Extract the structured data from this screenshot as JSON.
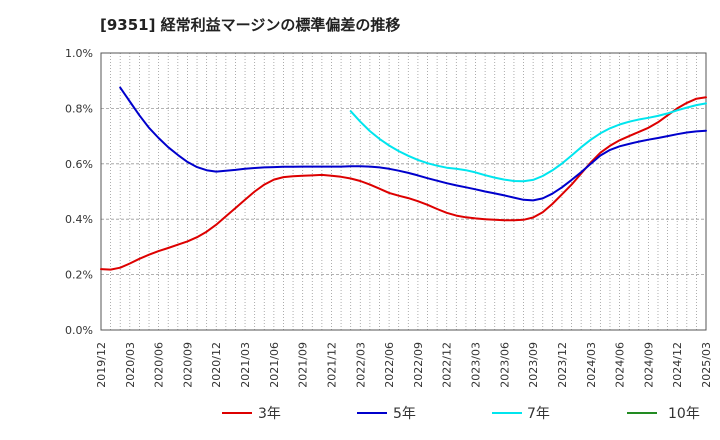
{
  "chart_data": {
    "type": "line",
    "title": "[9351]  経常利益マージンの標準偏差の推移",
    "xlabel": "",
    "ylabel": "",
    "ylim": [
      0,
      1.0
    ],
    "y_ticks": [
      "0.0%",
      "0.2%",
      "0.4%",
      "0.6%",
      "0.8%",
      "1.0%"
    ],
    "y_tick_values": [
      0,
      0.2,
      0.4,
      0.6,
      0.8,
      1.0
    ],
    "x_range": [
      "2019-12",
      "2025-03"
    ],
    "x_ticks": [
      "2019/12",
      "2020/03",
      "2020/06",
      "2020/09",
      "2020/12",
      "2021/03",
      "2021/06",
      "2021/09",
      "2021/12",
      "2022/03",
      "2022/06",
      "2022/09",
      "2022/12",
      "2023/03",
      "2023/06",
      "2023/09",
      "2023/12",
      "2024/03",
      "2024/06",
      "2024/09",
      "2024/12",
      "2025/03"
    ],
    "grid": true,
    "legend_position": "bottom",
    "colors": {
      "3年": "#dd0000",
      "5年": "#0000cc",
      "7年": "#00e5ee",
      "10年": "#228b22"
    },
    "series": [
      {
        "name": "3年",
        "color": "#dd0000",
        "points": [
          [
            "2019-12",
            0.22
          ],
          [
            "2020-01",
            0.218
          ],
          [
            "2020-02",
            0.225
          ],
          [
            "2020-03",
            0.24
          ],
          [
            "2020-04",
            0.257
          ],
          [
            "2020-05",
            0.272
          ],
          [
            "2020-06",
            0.285
          ],
          [
            "2020-07",
            0.296
          ],
          [
            "2020-08",
            0.308
          ],
          [
            "2020-09",
            0.32
          ],
          [
            "2020-10",
            0.335
          ],
          [
            "2020-11",
            0.355
          ],
          [
            "2020-12",
            0.38
          ],
          [
            "2021-01",
            0.41
          ],
          [
            "2021-02",
            0.44
          ],
          [
            "2021-03",
            0.47
          ],
          [
            "2021-04",
            0.5
          ],
          [
            "2021-05",
            0.525
          ],
          [
            "2021-06",
            0.543
          ],
          [
            "2021-07",
            0.552
          ],
          [
            "2021-08",
            0.555
          ],
          [
            "2021-09",
            0.557
          ],
          [
            "2021-10",
            0.558
          ],
          [
            "2021-11",
            0.56
          ],
          [
            "2021-12",
            0.557
          ],
          [
            "2022-01",
            0.553
          ],
          [
            "2022-02",
            0.547
          ],
          [
            "2022-03",
            0.538
          ],
          [
            "2022-04",
            0.525
          ],
          [
            "2022-05",
            0.51
          ],
          [
            "2022-06",
            0.495
          ],
          [
            "2022-07",
            0.485
          ],
          [
            "2022-08",
            0.476
          ],
          [
            "2022-09",
            0.465
          ],
          [
            "2022-10",
            0.452
          ],
          [
            "2022-11",
            0.437
          ],
          [
            "2022-12",
            0.423
          ],
          [
            "2023-01",
            0.413
          ],
          [
            "2023-02",
            0.407
          ],
          [
            "2023-03",
            0.403
          ],
          [
            "2023-04",
            0.4
          ],
          [
            "2023-05",
            0.398
          ],
          [
            "2023-06",
            0.396
          ],
          [
            "2023-07",
            0.396
          ],
          [
            "2023-08",
            0.398
          ],
          [
            "2023-09",
            0.406
          ],
          [
            "2023-10",
            0.425
          ],
          [
            "2023-11",
            0.455
          ],
          [
            "2023-12",
            0.49
          ],
          [
            "2024-01",
            0.525
          ],
          [
            "2024-02",
            0.565
          ],
          [
            "2024-03",
            0.605
          ],
          [
            "2024-04",
            0.64
          ],
          [
            "2024-05",
            0.665
          ],
          [
            "2024-06",
            0.685
          ],
          [
            "2024-07",
            0.7
          ],
          [
            "2024-08",
            0.715
          ],
          [
            "2024-09",
            0.73
          ],
          [
            "2024-10",
            0.75
          ],
          [
            "2024-11",
            0.775
          ],
          [
            "2024-12",
            0.8
          ],
          [
            "2025-01",
            0.82
          ],
          [
            "2025-02",
            0.835
          ],
          [
            "2025-03",
            0.84
          ]
        ]
      },
      {
        "name": "5年",
        "color": "#0000cc",
        "points": [
          [
            "2020-02",
            0.875
          ],
          [
            "2020-03",
            0.825
          ],
          [
            "2020-04",
            0.775
          ],
          [
            "2020-05",
            0.73
          ],
          [
            "2020-06",
            0.693
          ],
          [
            "2020-07",
            0.66
          ],
          [
            "2020-08",
            0.632
          ],
          [
            "2020-09",
            0.607
          ],
          [
            "2020-10",
            0.588
          ],
          [
            "2020-11",
            0.577
          ],
          [
            "2020-12",
            0.572
          ],
          [
            "2021-01",
            0.575
          ],
          [
            "2021-02",
            0.578
          ],
          [
            "2021-03",
            0.582
          ],
          [
            "2021-04",
            0.585
          ],
          [
            "2021-05",
            0.587
          ],
          [
            "2021-06",
            0.588
          ],
          [
            "2021-07",
            0.589
          ],
          [
            "2021-08",
            0.589
          ],
          [
            "2021-09",
            0.59
          ],
          [
            "2021-10",
            0.59
          ],
          [
            "2021-11",
            0.59
          ],
          [
            "2021-12",
            0.59
          ],
          [
            "2022-01",
            0.59
          ],
          [
            "2022-02",
            0.591
          ],
          [
            "2022-03",
            0.591
          ],
          [
            "2022-04",
            0.59
          ],
          [
            "2022-05",
            0.587
          ],
          [
            "2022-06",
            0.582
          ],
          [
            "2022-07",
            0.575
          ],
          [
            "2022-08",
            0.567
          ],
          [
            "2022-09",
            0.558
          ],
          [
            "2022-10",
            0.548
          ],
          [
            "2022-11",
            0.539
          ],
          [
            "2022-12",
            0.53
          ],
          [
            "2023-01",
            0.522
          ],
          [
            "2023-02",
            0.515
          ],
          [
            "2023-03",
            0.508
          ],
          [
            "2023-04",
            0.5
          ],
          [
            "2023-05",
            0.493
          ],
          [
            "2023-06",
            0.486
          ],
          [
            "2023-07",
            0.478
          ],
          [
            "2023-08",
            0.47
          ],
          [
            "2023-09",
            0.468
          ],
          [
            "2023-10",
            0.475
          ],
          [
            "2023-11",
            0.492
          ],
          [
            "2023-12",
            0.515
          ],
          [
            "2024-01",
            0.542
          ],
          [
            "2024-02",
            0.57
          ],
          [
            "2024-03",
            0.6
          ],
          [
            "2024-04",
            0.63
          ],
          [
            "2024-05",
            0.65
          ],
          [
            "2024-06",
            0.663
          ],
          [
            "2024-07",
            0.672
          ],
          [
            "2024-08",
            0.68
          ],
          [
            "2024-09",
            0.687
          ],
          [
            "2024-10",
            0.693
          ],
          [
            "2024-11",
            0.7
          ],
          [
            "2024-12",
            0.707
          ],
          [
            "2025-01",
            0.713
          ],
          [
            "2025-02",
            0.717
          ],
          [
            "2025-03",
            0.719
          ]
        ]
      },
      {
        "name": "7年",
        "color": "#00e5ee",
        "points": [
          [
            "2022-02",
            0.79
          ],
          [
            "2022-03",
            0.752
          ],
          [
            "2022-04",
            0.718
          ],
          [
            "2022-05",
            0.69
          ],
          [
            "2022-06",
            0.666
          ],
          [
            "2022-07",
            0.646
          ],
          [
            "2022-08",
            0.629
          ],
          [
            "2022-09",
            0.614
          ],
          [
            "2022-10",
            0.602
          ],
          [
            "2022-11",
            0.593
          ],
          [
            "2022-12",
            0.586
          ],
          [
            "2023-01",
            0.582
          ],
          [
            "2023-02",
            0.577
          ],
          [
            "2023-03",
            0.569
          ],
          [
            "2023-04",
            0.559
          ],
          [
            "2023-05",
            0.55
          ],
          [
            "2023-06",
            0.543
          ],
          [
            "2023-07",
            0.538
          ],
          [
            "2023-08",
            0.537
          ],
          [
            "2023-09",
            0.542
          ],
          [
            "2023-10",
            0.556
          ],
          [
            "2023-11",
            0.576
          ],
          [
            "2023-12",
            0.601
          ],
          [
            "2024-01",
            0.63
          ],
          [
            "2024-02",
            0.66
          ],
          [
            "2024-03",
            0.687
          ],
          [
            "2024-04",
            0.71
          ],
          [
            "2024-05",
            0.728
          ],
          [
            "2024-06",
            0.742
          ],
          [
            "2024-07",
            0.752
          ],
          [
            "2024-08",
            0.76
          ],
          [
            "2024-09",
            0.766
          ],
          [
            "2024-10",
            0.773
          ],
          [
            "2024-11",
            0.782
          ],
          [
            "2024-12",
            0.793
          ],
          [
            "2025-01",
            0.803
          ],
          [
            "2025-02",
            0.812
          ],
          [
            "2025-03",
            0.818
          ]
        ]
      },
      {
        "name": "10年",
        "color": "#228b22",
        "points": []
      }
    ]
  }
}
